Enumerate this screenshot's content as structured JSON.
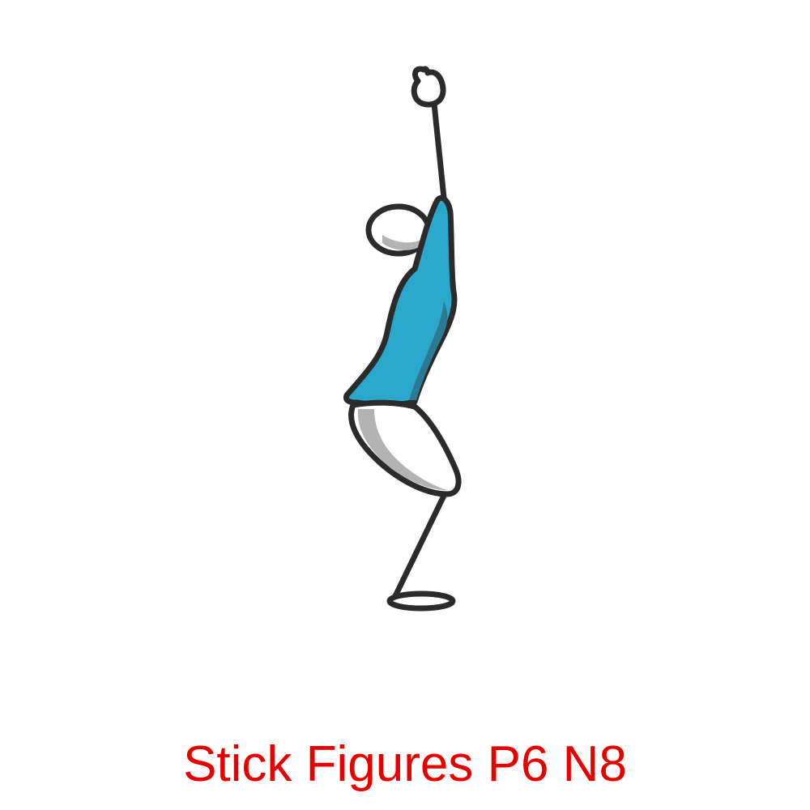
{
  "caption": {
    "text": "Stick Figures P6 N8",
    "color": "#e60000"
  },
  "figure": {
    "pose": "raised-arm crouch",
    "colors": {
      "outline": "#2b2b2b",
      "shirt": "#29a8cc",
      "shirt_shade": "#2b7a92",
      "body": "#ffffff",
      "shade": "#b3b3b3"
    }
  }
}
